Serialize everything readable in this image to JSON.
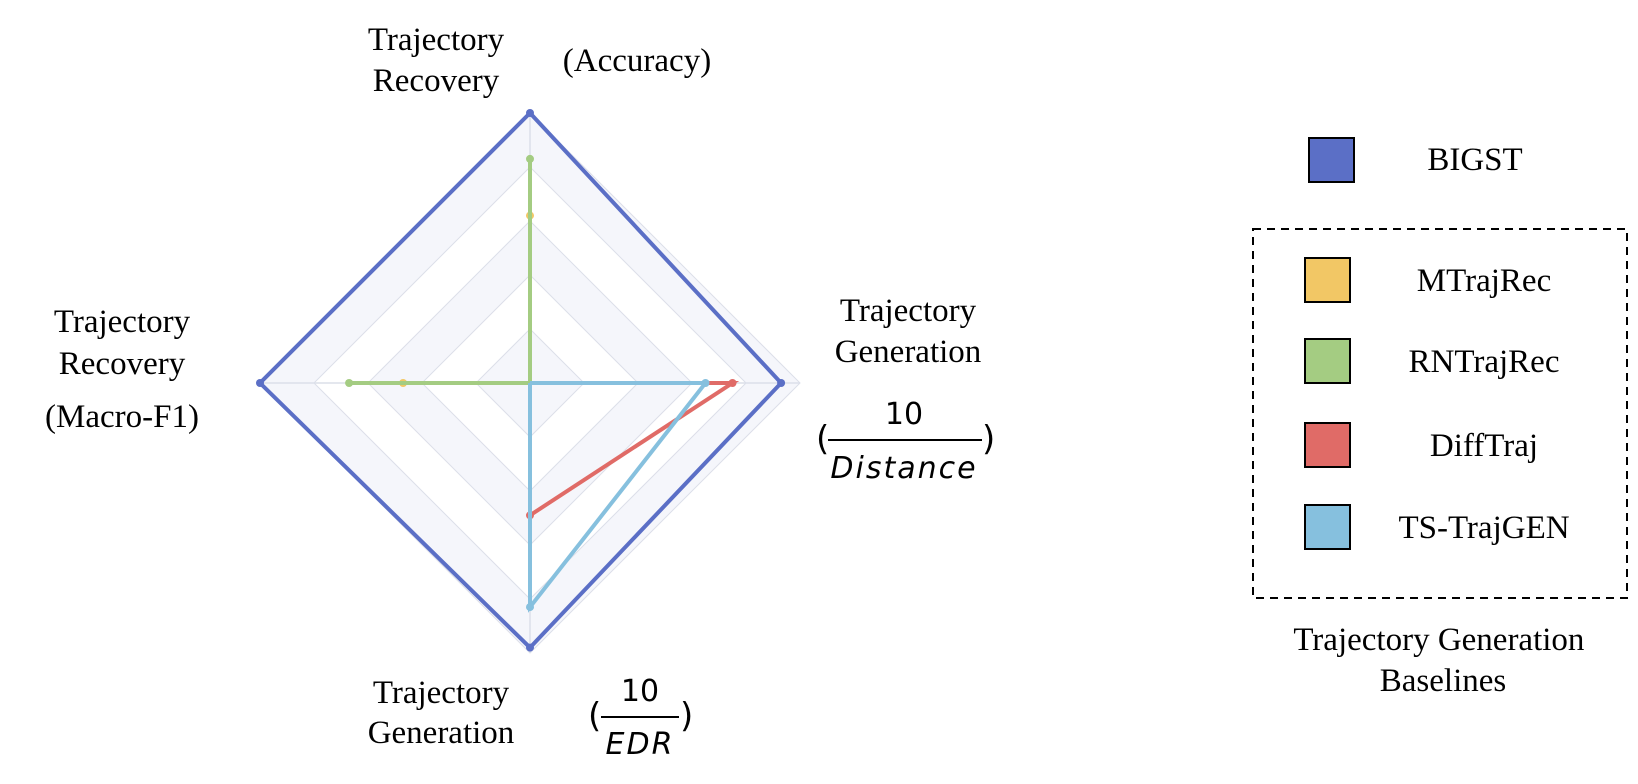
{
  "chart_data": {
    "type": "radar",
    "axes": [
      {
        "id": "top",
        "label_lines": [
          "Trajectory",
          "Recovery"
        ],
        "qualifier": "(Accuracy)"
      },
      {
        "id": "right",
        "label_lines": [
          "Trajectory",
          "Generation"
        ],
        "fraction": {
          "numerator": "10",
          "denominator": "Distance"
        }
      },
      {
        "id": "bottom",
        "label_lines": [
          "Trajectory",
          "Generation"
        ],
        "fraction": {
          "numerator": "10",
          "denominator": "EDR"
        }
      },
      {
        "id": "left",
        "label_lines": [
          "Trajectory",
          "Recovery",
          "(Macro-F1)"
        ]
      }
    ],
    "rmax": 1.0,
    "grid_levels": [
      0.2,
      0.4,
      0.6,
      0.8,
      1.0
    ],
    "grid_shading": "alternating",
    "series": [
      {
        "name": "BIGST",
        "color": "#5b6fc6",
        "values": [
          1.0,
          0.93,
          0.98,
          1.0
        ]
      },
      {
        "name": "MTrajRec",
        "color": "#f2c765",
        "values": [
          0.62,
          0.0,
          0.0,
          0.47
        ],
        "closed": false
      },
      {
        "name": "RNTrajRec",
        "color": "#a4cc82",
        "values": [
          0.83,
          0.0,
          0.0,
          0.67
        ],
        "closed": false
      },
      {
        "name": "DiffTraj",
        "color": "#e06b67",
        "values": [
          0.0,
          0.75,
          0.49,
          0.0
        ],
        "closed": false
      },
      {
        "name": "TS-TrajGEN",
        "color": "#86c0de",
        "values": [
          0.0,
          0.65,
          0.83,
          0.0
        ],
        "closed": false
      }
    ],
    "legend": {
      "placement": "right",
      "group_title": "Trajectory Generation Baselines"
    }
  }
}
